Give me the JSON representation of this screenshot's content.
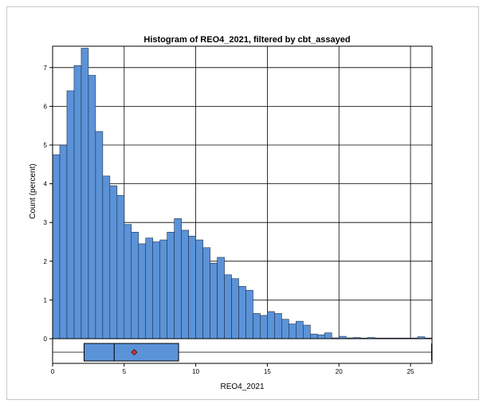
{
  "chart_data": {
    "type": "bar",
    "title": "Histogram of REO4_2021, filtered by cbt_assayed",
    "xlabel": "REO4_2021",
    "ylabel": "Count (percent)",
    "xlim": [
      0,
      26.5
    ],
    "ylim": [
      0,
      7.6
    ],
    "grid": true,
    "bin_width": 0.5,
    "bin_start": 0,
    "x_ticks": [
      0,
      5,
      10,
      15,
      20,
      25
    ],
    "y_ticks": [
      0,
      1,
      2,
      3,
      4,
      5,
      6,
      7
    ],
    "values": [
      4.75,
      5.0,
      6.4,
      7.05,
      7.5,
      6.8,
      5.35,
      4.2,
      3.95,
      3.7,
      2.95,
      2.75,
      2.45,
      2.6,
      2.5,
      2.55,
      2.75,
      3.1,
      2.8,
      2.65,
      2.55,
      2.35,
      1.95,
      2.1,
      1.65,
      1.55,
      1.35,
      1.25,
      0.65,
      0.6,
      0.7,
      0.65,
      0.5,
      0.38,
      0.45,
      0.35,
      0.12,
      0.1,
      0.15,
      0.02,
      0.06,
      0.02,
      0.03,
      0.01,
      0.03,
      0.01,
      0.01,
      0.01,
      0.01,
      0.01,
      0.01,
      0.05,
      0.01,
      0.05
    ],
    "bar_color": "#5b93d8",
    "boxplot": {
      "q1": 2.2,
      "median": 4.3,
      "q3": 8.8,
      "mean": 5.7,
      "whisker_low": 0,
      "whisker_high": 26.5,
      "box_color": "#5b93d8",
      "mean_marker_color": "#e8322a"
    }
  }
}
